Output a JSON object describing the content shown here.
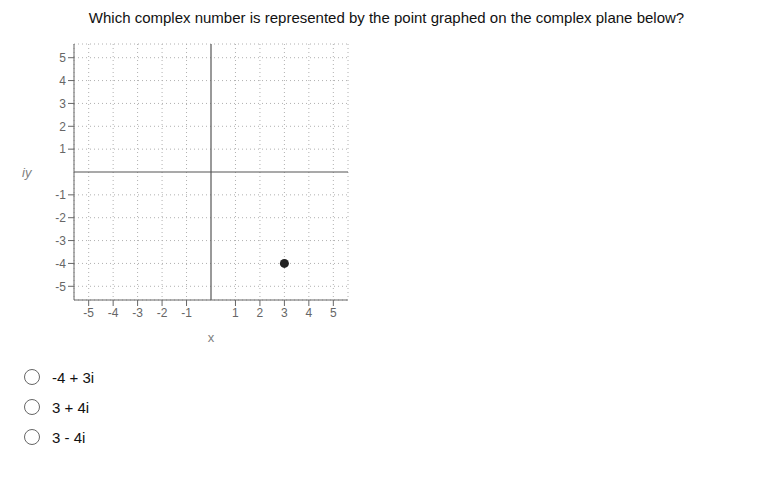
{
  "chart_data": {
    "type": "scatter",
    "title": "Which complex number is represented by the point graphed on the complex plane  below?",
    "x": [
      3
    ],
    "values": [
      -4
    ],
    "color": "#222222",
    "x_label": "x",
    "y_label": "iy",
    "xlim": [
      -5.6,
      5.6
    ],
    "ylim": [
      -5.6,
      5.6
    ],
    "xticks": [
      -5,
      -4,
      -3,
      -2,
      -1,
      1,
      2,
      3,
      4,
      5
    ],
    "yticks": [
      -5,
      -4,
      -3,
      -2,
      -1,
      1,
      2,
      3,
      4,
      5
    ],
    "grid": true,
    "annotations": [
      "-4 + 3i",
      "3 + 4i",
      "3 - 4i"
    ]
  }
}
